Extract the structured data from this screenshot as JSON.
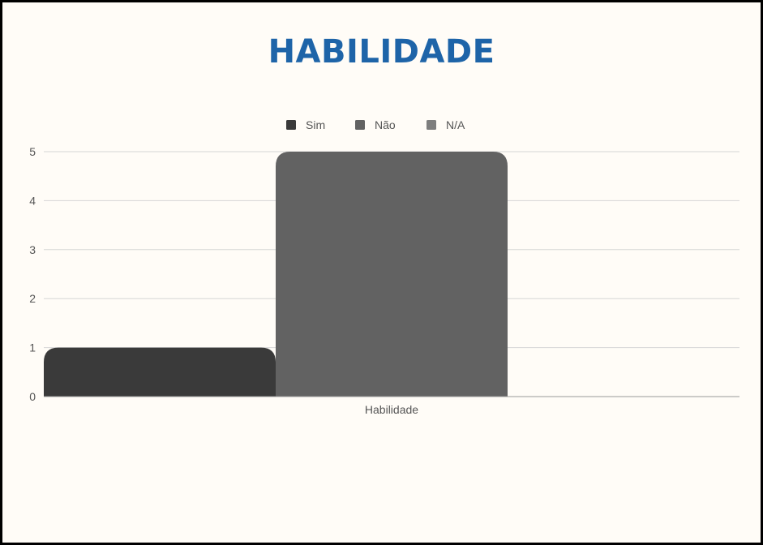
{
  "chart_data": {
    "type": "bar",
    "title": "HABILIDADE",
    "categories": [
      "Habilidade"
    ],
    "series": [
      {
        "name": "Sim",
        "values": [
          1
        ],
        "color": "#3a3a3a"
      },
      {
        "name": "Não",
        "values": [
          5
        ],
        "color": "#626262"
      },
      {
        "name": "N/A",
        "values": [
          0
        ],
        "color": "#7e7e7e"
      }
    ],
    "ylim": [
      0,
      5
    ],
    "yticks": [
      "0",
      "1",
      "2",
      "3",
      "4",
      "5"
    ],
    "grid": true,
    "legend_position": "top-center"
  }
}
